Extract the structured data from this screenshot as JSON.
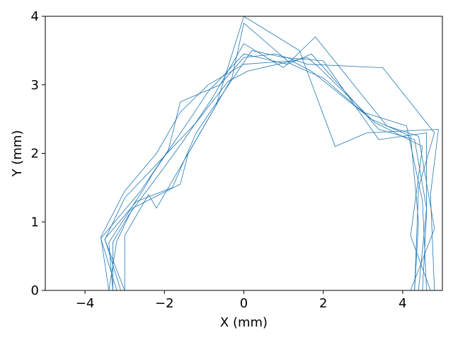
{
  "chart_data": {
    "type": "line",
    "title": "",
    "xlabel": "X (mm)",
    "ylabel": "Y (mm)",
    "xlim": [
      -5,
      5
    ],
    "ylim": [
      0,
      4
    ],
    "xticks": [
      -4,
      -2,
      0,
      2,
      4
    ],
    "xtick_labels": [
      "−4",
      "−2",
      "0",
      "2",
      "4"
    ],
    "yticks": [
      0,
      1,
      2,
      3,
      4
    ],
    "ytick_labels": [
      "0",
      "1",
      "2",
      "3",
      "4"
    ],
    "grid": false,
    "line_color": "#1f77b4",
    "series": [
      {
        "x": [
          -3.4,
          -3.6,
          -3.0,
          -2.2,
          -1.6,
          -0.9,
          0.0,
          1.2,
          1.7,
          3.2,
          4.2,
          4.4,
          4.3
        ],
        "y": [
          0.0,
          0.78,
          1.45,
          2.0,
          2.6,
          3.0,
          3.3,
          3.35,
          3.2,
          2.5,
          2.25,
          1.0,
          0.0
        ]
      },
      {
        "x": [
          -3.1,
          -3.5,
          -2.7,
          -1.8,
          -1.2,
          -0.5,
          0.2,
          1.0,
          2.0,
          3.4,
          4.6,
          4.6,
          4.5
        ],
        "y": [
          0.0,
          0.75,
          1.3,
          1.5,
          2.3,
          2.9,
          3.5,
          3.4,
          3.35,
          2.2,
          2.3,
          1.1,
          0.0
        ]
      },
      {
        "x": [
          -3.3,
          -3.3,
          -2.9,
          -2.0,
          -1.5,
          -0.8,
          0.0,
          1.0,
          1.8,
          3.6,
          4.4,
          4.8,
          4.2
        ],
        "y": [
          0.0,
          0.7,
          1.1,
          1.8,
          2.2,
          2.8,
          3.6,
          3.25,
          3.7,
          2.4,
          2.25,
          0.9,
          0.0
        ]
      },
      {
        "x": [
          -3.0,
          -3.0,
          -2.4,
          -2.2,
          -1.0,
          -0.3,
          0.0,
          1.2,
          2.0,
          3.0,
          4.1,
          4.5,
          4.6
        ],
        "y": [
          0.0,
          0.8,
          1.4,
          1.2,
          2.4,
          3.1,
          3.9,
          3.3,
          3.1,
          2.6,
          2.4,
          1.3,
          0.0
        ]
      },
      {
        "x": [
          -3.2,
          -3.6,
          -2.6,
          -1.9,
          -1.6,
          -0.6,
          0.0,
          0.8,
          1.6,
          3.5,
          4.8,
          4.4,
          4.3
        ],
        "y": [
          0.0,
          0.76,
          1.45,
          2.05,
          2.75,
          3.0,
          3.4,
          3.45,
          3.3,
          3.25,
          2.3,
          1.5,
          0.0
        ]
      },
      {
        "x": [
          -3.4,
          -3.2,
          -2.8,
          -1.6,
          -1.4,
          -0.7,
          0.0,
          1.4,
          2.3,
          3.1,
          4.9,
          4.7,
          4.8
        ],
        "y": [
          0.0,
          0.72,
          1.2,
          1.55,
          2.0,
          2.7,
          4.0,
          3.5,
          2.1,
          2.3,
          2.35,
          1.4,
          0.0
        ]
      },
      {
        "x": [
          -3.0,
          -3.5,
          -3.0,
          -2.1,
          -1.2,
          -0.4,
          0.1,
          1.6,
          1.9,
          3.3,
          4.5,
          4.2,
          4.7
        ],
        "y": [
          0.0,
          0.74,
          1.35,
          1.9,
          2.45,
          3.05,
          3.2,
          3.4,
          3.25,
          2.45,
          2.1,
          0.8,
          0.0
        ]
      },
      {
        "x": [
          -3.3,
          -3.4,
          -2.5,
          -2.3,
          -1.3,
          -0.9,
          0.0,
          1.1,
          1.7,
          3.4,
          4.3,
          4.6,
          4.4
        ],
        "y": [
          0.0,
          0.7,
          1.5,
          1.7,
          2.55,
          2.9,
          3.45,
          3.3,
          3.45,
          2.35,
          2.2,
          1.2,
          0.0
        ]
      }
    ]
  }
}
